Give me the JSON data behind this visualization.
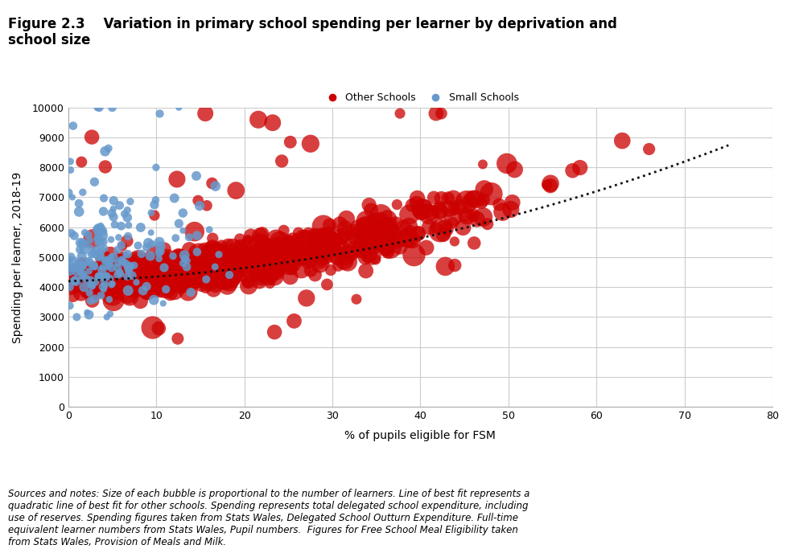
{
  "title": "Figure 2.3    Variation in primary school spending per learner by deprivation and\nschool size",
  "xlabel": "% of pupils eligible for FSM",
  "ylabel": "Spending per learner, 2018-19",
  "xlim": [
    0,
    80
  ],
  "ylim": [
    0,
    10000
  ],
  "xticks": [
    0,
    10,
    20,
    30,
    40,
    50,
    60,
    70,
    80
  ],
  "yticks": [
    0,
    1000,
    2000,
    3000,
    4000,
    5000,
    6000,
    7000,
    8000,
    9000,
    10000
  ],
  "other_color": "#CC0000",
  "small_color": "#6699CC",
  "trend_color": "#111111",
  "grid_color": "#CCCCCC",
  "legend_other": "Other Schools",
  "legend_small": "Small Schools",
  "note_text": "Sources and notes: Size of each bubble is proportional to the number of learners. Line of best fit represents a\nquadratic line of best fit for other schools. Spending represents total delegated school expenditure, including\nuse of reserves. Spending figures taken from Stats Wales, Delegated School Outturn Expenditure. Full-time\nequivalent learner numbers from Stats Wales, Pupil numbers.  Figures for Free School Meal Eligibility taken\nfrom Stats Wales, Provision of Meals and Milk.",
  "seed": 42
}
